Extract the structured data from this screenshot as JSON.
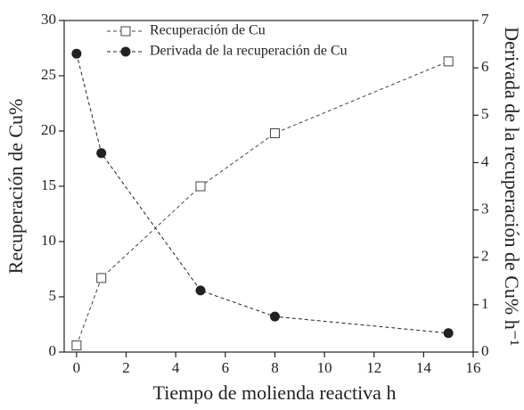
{
  "chart_data": {
    "type": "line",
    "xlabel": "Tiempo de molienda reactiva h",
    "ylabel": "Recuperación de Cu%",
    "y2label": "Derivada de la recuperación de Cu% h⁻¹",
    "x": [
      0,
      1,
      5,
      8,
      15
    ],
    "xlim": [
      -0.5,
      16
    ],
    "xticks": [
      0,
      2,
      4,
      6,
      8,
      10,
      12,
      14,
      16
    ],
    "ylim": [
      0,
      30
    ],
    "yticks": [
      0,
      5,
      10,
      15,
      20,
      25,
      30
    ],
    "y2lim": [
      0,
      7
    ],
    "y2ticks": [
      0,
      1,
      2,
      3,
      4,
      5,
      6,
      7
    ],
    "series": [
      {
        "name": "Recuperación de Cu",
        "color": "#444444",
        "marker": "square-open",
        "values": [
          0.6,
          6.7,
          15.0,
          19.8,
          26.3
        ]
      },
      {
        "name": "Derivada de la recuperación de Cu",
        "color": "#222222",
        "marker": "circle-filled",
        "axis": "y2",
        "values": [
          6.3,
          4.2,
          1.3,
          0.75,
          0.4
        ]
      }
    ]
  }
}
